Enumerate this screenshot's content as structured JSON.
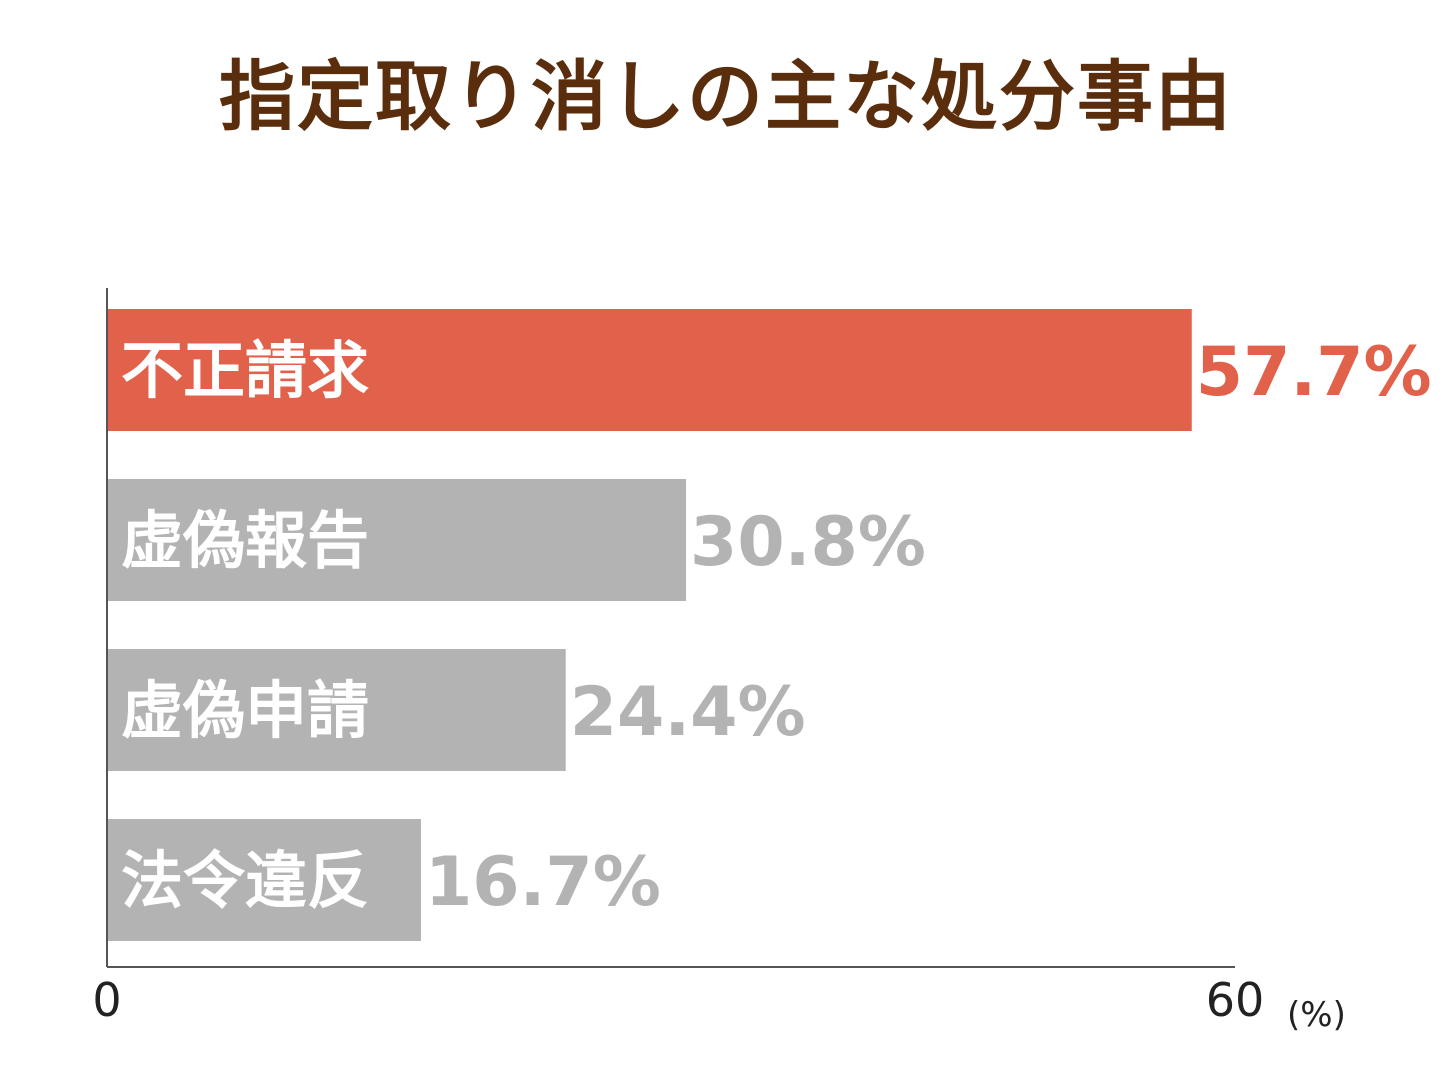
{
  "chart_data": {
    "type": "bar",
    "orientation": "horizontal",
    "title": "指定取り消しの主な処分事由",
    "categories": [
      "不正請求",
      "虚偽報告",
      "虚偽申請",
      "法令違反"
    ],
    "values": [
      57.7,
      30.8,
      24.4,
      16.7
    ],
    "value_labels": [
      "57.7%",
      "30.8%",
      "24.4%",
      "16.7%"
    ],
    "xlim": [
      0,
      60
    ],
    "xticks": [
      "0",
      "60"
    ],
    "unit": "(%)",
    "grid": false,
    "legend": "none",
    "colors": {
      "highlight": "#e2614b",
      "default": "#b3b3b3",
      "title": "#5a2d0c",
      "axis": "#555555"
    },
    "highlight_index": 0
  }
}
